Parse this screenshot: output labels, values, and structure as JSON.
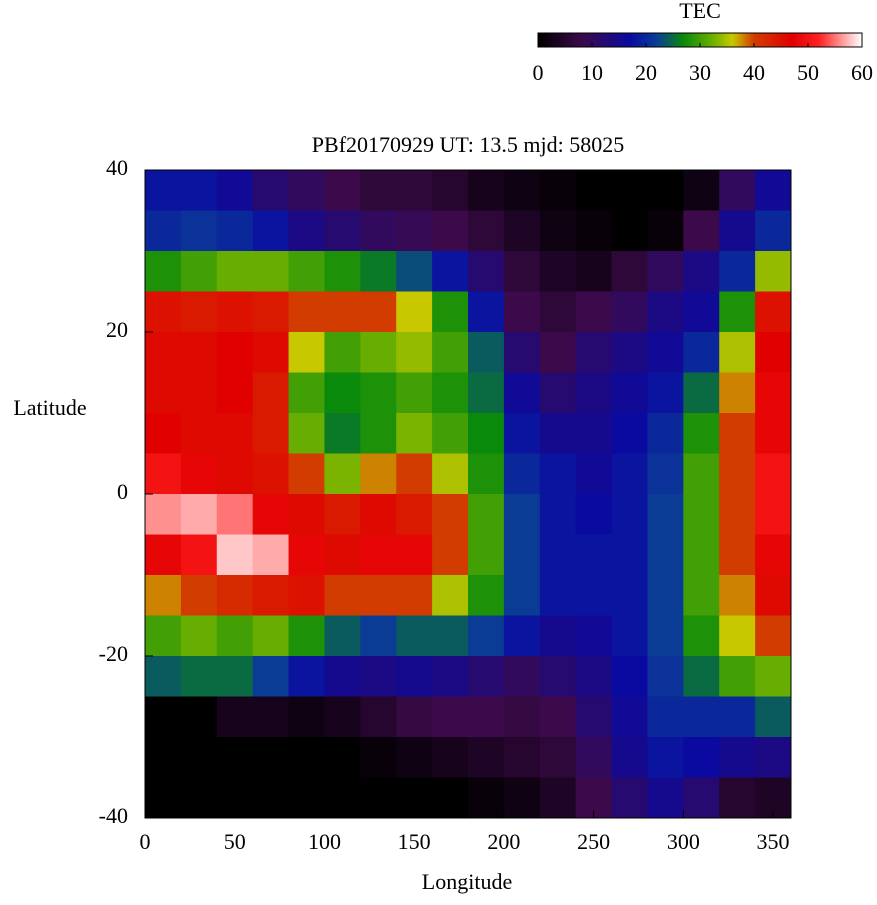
{
  "chart_data": {
    "type": "heatmap",
    "title": "PBf20170929  UT: 13.5  mjd: 58025",
    "xlabel": "Longitude",
    "ylabel": "Latitude",
    "x": [
      10,
      30,
      50,
      70,
      90,
      110,
      130,
      150,
      170,
      190,
      210,
      230,
      250,
      270,
      290,
      310,
      330,
      350
    ],
    "y": [
      37.5,
      32.5,
      27.5,
      22.5,
      17.5,
      12.5,
      7.5,
      2.5,
      -2.5,
      -7.5,
      -12.5,
      -17.5,
      -22.5,
      -27.5,
      -32.5,
      -37.5
    ],
    "xlim": [
      0,
      360
    ],
    "ylim": [
      -40,
      40
    ],
    "xticks": [
      0,
      50,
      100,
      150,
      200,
      250,
      300,
      350
    ],
    "yticks": [
      -40,
      -20,
      0,
      20,
      40
    ],
    "values": [
      [
        18,
        18,
        16,
        12,
        10,
        8,
        6,
        6,
        5,
        3,
        2,
        1,
        0,
        0,
        0,
        2,
        10,
        16
      ],
      [
        20,
        21,
        20,
        18,
        14,
        12,
        10,
        9,
        8,
        6,
        4,
        2,
        1,
        0,
        1,
        8,
        15,
        20
      ],
      [
        28,
        30,
        32,
        32,
        30,
        28,
        26,
        23,
        18,
        12,
        6,
        4,
        3,
        6,
        10,
        14,
        20,
        34
      ],
      [
        45,
        44,
        45,
        44,
        40,
        40,
        40,
        36,
        28,
        18,
        8,
        6,
        8,
        10,
        14,
        16,
        28,
        45
      ],
      [
        46,
        46,
        47,
        46,
        36,
        30,
        32,
        34,
        30,
        24,
        12,
        8,
        12,
        14,
        16,
        20,
        35,
        47
      ],
      [
        46,
        46,
        47,
        44,
        30,
        27,
        28,
        30,
        28,
        25,
        16,
        12,
        14,
        16,
        18,
        25,
        38,
        48
      ],
      [
        47,
        46,
        46,
        44,
        32,
        26,
        28,
        33,
        30,
        27,
        18,
        15,
        15,
        17,
        20,
        28,
        40,
        48
      ],
      [
        50,
        48,
        46,
        45,
        40,
        33,
        38,
        40,
        35,
        28,
        20,
        18,
        16,
        18,
        21,
        30,
        40,
        50
      ],
      [
        56,
        57,
        55,
        48,
        46,
        44,
        46,
        44,
        40,
        30,
        22,
        18,
        17,
        18,
        22,
        30,
        40,
        50
      ],
      [
        48,
        50,
        58,
        57,
        48,
        46,
        48,
        48,
        40,
        30,
        22,
        18,
        18,
        18,
        22,
        30,
        40,
        48
      ],
      [
        38,
        40,
        42,
        44,
        45,
        40,
        40,
        40,
        35,
        28,
        22,
        18,
        18,
        18,
        22,
        30,
        38,
        46
      ],
      [
        30,
        32,
        30,
        32,
        28,
        24,
        22,
        24,
        24,
        22,
        18,
        15,
        16,
        18,
        22,
        28,
        36,
        40
      ],
      [
        24,
        25,
        25,
        22,
        18,
        15,
        14,
        15,
        14,
        12,
        10,
        12,
        14,
        17,
        21,
        25,
        30,
        32
      ],
      [
        0,
        0,
        3,
        3,
        2,
        3,
        5,
        7,
        8,
        8,
        7,
        8,
        12,
        16,
        20,
        20,
        20,
        24
      ],
      [
        0,
        0,
        0,
        0,
        0,
        0,
        1,
        2,
        3,
        4,
        5,
        6,
        10,
        15,
        18,
        17,
        15,
        14
      ],
      [
        0,
        0,
        0,
        0,
        0,
        0,
        0,
        0,
        0,
        1,
        2,
        4,
        8,
        12,
        15,
        12,
        5,
        4
      ]
    ],
    "colorbar": {
      "title": "TEC",
      "lim": [
        0,
        60
      ],
      "ticks": [
        0,
        10,
        20,
        30,
        40,
        50,
        60
      ],
      "colors": [
        [
          0,
          "#000000"
        ],
        [
          8,
          "#3c0a4a"
        ],
        [
          17,
          "#0a0aa0"
        ],
        [
          22,
          "#0a3c96"
        ],
        [
          27,
          "#0a8a0a"
        ],
        [
          33,
          "#7ab400"
        ],
        [
          36,
          "#c8c800"
        ],
        [
          40,
          "#d23c00"
        ],
        [
          47,
          "#e00000"
        ],
        [
          52,
          "#ff2020"
        ],
        [
          60,
          "#ffffff"
        ]
      ]
    }
  }
}
